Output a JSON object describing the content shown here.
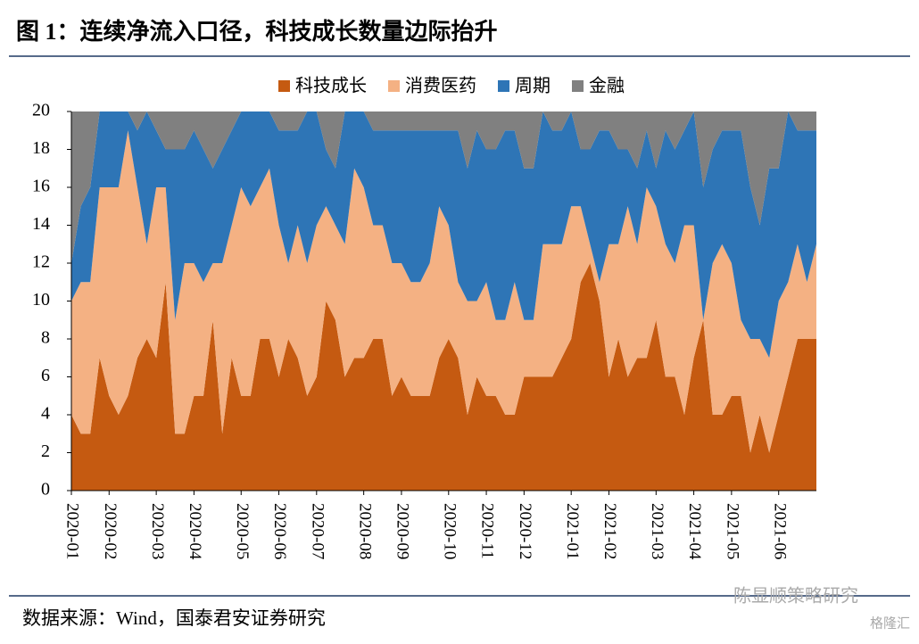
{
  "chart_data": {
    "type": "stacked_area",
    "title": "图 1：连续净流入口径，科技成长数量边际抬升",
    "source": "数据来源：Wind，国泰君安证券研究",
    "watermark": "陈显顺策略研究",
    "watermark_logo": "格隆汇",
    "categories": [
      "2020-01",
      null,
      null,
      null,
      "2020-02",
      null,
      null,
      null,
      null,
      "2020-03",
      null,
      null,
      null,
      "2020-04",
      null,
      null,
      null,
      null,
      "2020-05",
      null,
      null,
      null,
      "2020-06",
      null,
      null,
      null,
      "2020-07",
      null,
      null,
      null,
      null,
      "2020-08",
      null,
      null,
      null,
      "2020-09",
      null,
      null,
      null,
      null,
      "2020-10",
      null,
      null,
      null,
      "2020-11",
      null,
      null,
      null,
      "2020-12",
      null,
      null,
      null,
      null,
      "2021-01",
      null,
      null,
      null,
      "2021-02",
      null,
      null,
      null,
      null,
      "2021-03",
      null,
      null,
      null,
      "2021-04",
      null,
      null,
      null,
      "2021-05",
      null,
      null,
      null,
      null,
      "2021-06",
      null,
      null,
      null,
      null
    ],
    "series": [
      {
        "name": "科技成长",
        "color": "#C55A11",
        "values": [
          4,
          3,
          3,
          7,
          5,
          4,
          5,
          7,
          8,
          7,
          11,
          3,
          3,
          5,
          5,
          9,
          3,
          7,
          5,
          5,
          8,
          8,
          6,
          8,
          7,
          5,
          6,
          10,
          9,
          6,
          7,
          7,
          8,
          8,
          5,
          6,
          5,
          5,
          5,
          7,
          8,
          7,
          4,
          6,
          5,
          5,
          4,
          4,
          6,
          6,
          6,
          6,
          7,
          8,
          11,
          12,
          10,
          6,
          8,
          6,
          7,
          7,
          9,
          6,
          6,
          4,
          7,
          9,
          4,
          4,
          5,
          5,
          2,
          4,
          2,
          4,
          6,
          8,
          8,
          8
        ]
      },
      {
        "name": "消费医药",
        "color": "#F4B183",
        "values": [
          6,
          8,
          8,
          9,
          11,
          12,
          14,
          9,
          5,
          9,
          5,
          6,
          9,
          7,
          6,
          3,
          9,
          7,
          11,
          10,
          8,
          9,
          8,
          4,
          7,
          7,
          8,
          5,
          5,
          7,
          10,
          9,
          6,
          6,
          7,
          6,
          6,
          6,
          7,
          8,
          6,
          4,
          6,
          4,
          6,
          4,
          5,
          7,
          3,
          3,
          7,
          7,
          6,
          7,
          4,
          1,
          1,
          7,
          5,
          9,
          6,
          9,
          6,
          7,
          6,
          10,
          7,
          0,
          8,
          9,
          7,
          4,
          6,
          4,
          5,
          6,
          5,
          5,
          3,
          5
        ]
      },
      {
        "name": "周期",
        "color": "#2E75B6",
        "values": [
          2,
          4,
          5,
          4,
          4,
          4,
          1,
          3,
          7,
          3,
          2,
          9,
          6,
          7,
          7,
          5,
          6,
          5,
          4,
          5,
          4,
          3,
          5,
          7,
          5,
          8,
          6,
          3,
          3,
          7,
          3,
          4,
          5,
          5,
          7,
          7,
          8,
          8,
          7,
          4,
          5,
          8,
          7,
          9,
          7,
          9,
          10,
          8,
          8,
          8,
          7,
          6,
          6,
          5,
          3,
          5,
          8,
          6,
          5,
          3,
          4,
          3,
          2,
          6,
          6,
          5,
          6,
          7,
          6,
          6,
          7,
          10,
          8,
          6,
          10,
          7,
          9,
          6,
          8,
          6
        ]
      },
      {
        "name": "金融",
        "color": "#808080",
        "values": [
          8,
          5,
          4,
          0,
          0,
          0,
          0,
          1,
          0,
          1,
          2,
          2,
          2,
          1,
          2,
          3,
          2,
          1,
          0,
          0,
          0,
          0,
          1,
          1,
          1,
          0,
          0,
          2,
          3,
          0,
          0,
          0,
          1,
          1,
          1,
          1,
          1,
          1,
          1,
          1,
          1,
          1,
          3,
          1,
          2,
          2,
          1,
          1,
          3,
          3,
          0,
          1,
          1,
          0,
          2,
          2,
          1,
          1,
          2,
          2,
          3,
          1,
          3,
          1,
          2,
          1,
          0,
          4,
          2,
          1,
          1,
          1,
          4,
          6,
          3,
          3,
          0,
          1,
          1,
          1
        ]
      }
    ],
    "ylim": [
      0,
      20
    ],
    "yticks": [
      0,
      2,
      4,
      6,
      8,
      10,
      12,
      14,
      16,
      18,
      20
    ],
    "legend": "top"
  }
}
